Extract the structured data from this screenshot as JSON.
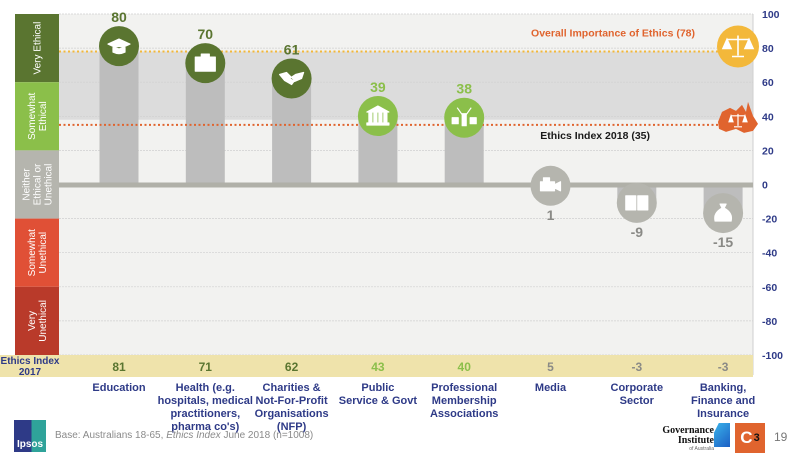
{
  "chart_data": {
    "type": "bar",
    "title": "",
    "xlabel": "",
    "ylabel": "",
    "ylim": [
      -100,
      100
    ],
    "yticks": [
      100,
      80,
      60,
      40,
      20,
      0,
      -20,
      -40,
      -60,
      -80,
      -100
    ],
    "grid": true,
    "categories": [
      "Education",
      "Health (e.g. hospitals, medical practitioners, pharma co's)",
      "Charities & Not-For-Profit Organisations (NFP)",
      "Public Service & Govt",
      "Professional Membership Associations",
      "Media",
      "Corporate Sector",
      "Banking, Finance and Insurance"
    ],
    "category_label_lines": [
      [
        "Education"
      ],
      [
        "Health (e.g.",
        "hospitals, medical",
        "practitioners,",
        "pharma co's)"
      ],
      [
        "Charities &",
        "Not-For-Profit",
        "Organisations",
        "(NFP)"
      ],
      [
        "Public",
        "Service & Govt"
      ],
      [
        "Professional",
        "Membership",
        "Associations"
      ],
      [
        "Media"
      ],
      [
        "Corporate",
        "Sector"
      ],
      [
        "Banking,",
        "Finance and",
        "Insurance"
      ]
    ],
    "series": [
      {
        "name": "Ethics Index 2018",
        "values": [
          80,
          70,
          61,
          39,
          38,
          1,
          -9,
          -15
        ]
      },
      {
        "name": "Ethics Index 2017",
        "values": [
          81,
          71,
          62,
          43,
          40,
          5,
          -3,
          -3
        ]
      }
    ],
    "icons": [
      "graduation-cap-icon",
      "medical-kit-icon",
      "handshake-icon",
      "government-building-icon",
      "people-celebrating-icon",
      "video-camera-icon",
      "office-buildings-icon",
      "money-bag-icon"
    ],
    "bands": [
      {
        "label": [
          "Very Ethical"
        ],
        "from": 60,
        "to": 100,
        "color": "#5a7530"
      },
      {
        "label": [
          "Somewhat",
          "Ethical"
        ],
        "from": 20,
        "to": 60,
        "color": "#8bbf4a"
      },
      {
        "label": [
          "Neither",
          "Ethical or",
          "Unethical"
        ],
        "from": -20,
        "to": 20,
        "color": "#b5b5ae"
      },
      {
        "label": [
          "Somewhat",
          "Unethical"
        ],
        "from": -60,
        "to": -20,
        "color": "#e05036"
      },
      {
        "label": [
          "Very",
          "Unethical"
        ],
        "from": -100,
        "to": -60,
        "color": "#b93a2a"
      }
    ],
    "reference_lines": [
      {
        "label": "Overall Importance of Ethics (78)",
        "value": 78,
        "color": "#f3b83a",
        "label_color": "#e0642e",
        "icon": "scales-of-justice-icon"
      },
      {
        "label": "Ethics Index 2018 (35)",
        "value": 35,
        "color": "#e0642e",
        "label_color": "#1a1a1a",
        "icon": "australia-scales-icon"
      }
    ],
    "shaded_range": [
      38,
      78
    ],
    "legend": "none"
  },
  "index_row": {
    "label_line1": "Ethics Index",
    "label_line2": "2017"
  },
  "footer": {
    "base_prefix": "Base: Australians 18-65,  ",
    "base_italic": "Ethics Index",
    "base_suffix": " June 2018 (n=1008)",
    "ipsos_logo": "Ipsos",
    "gov_line1": "Governance",
    "gov_line2": "Institute",
    "gov_line3": "of Australia",
    "c3_logo": "C",
    "c3_num": "3",
    "page_number": "19"
  },
  "colors": {
    "dark_green": "#5a7530",
    "light_green": "#8bbf4a",
    "grey_icon": "#b5b5ae",
    "bar_grey": "#bdbdbd",
    "axis_blue": "#2e3a87",
    "index_bg": "#efe3ab",
    "plot_bg": "#f2f2f0",
    "shade": "#dcdcdc"
  }
}
